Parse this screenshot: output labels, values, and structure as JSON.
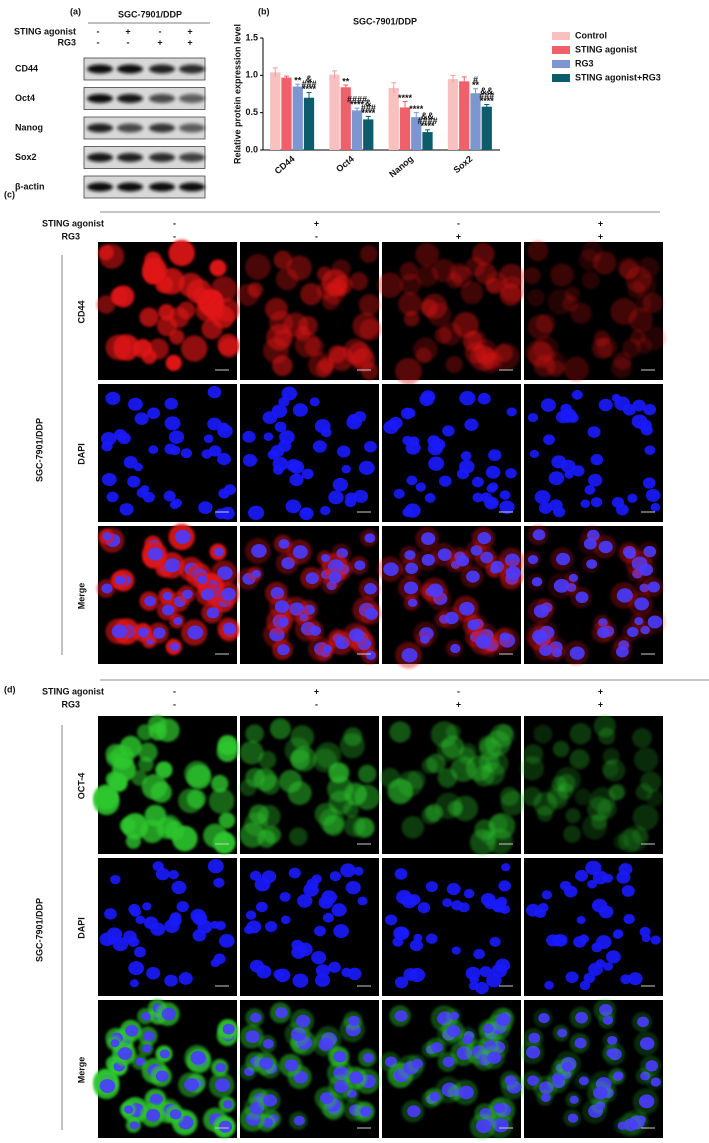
{
  "panel_a": {
    "label": "(a)",
    "title": "SGC-7901/DDP",
    "conditions": [
      {
        "label": "STING agonist",
        "signs": [
          "-",
          "+",
          "-",
          "+"
        ]
      },
      {
        "label": "RG3",
        "signs": [
          "-",
          "-",
          "+",
          "+"
        ]
      }
    ],
    "proteins": [
      "CD44",
      "Oct4",
      "Nanog",
      "Sox2",
      "β-actin"
    ]
  },
  "chart_data": {
    "type": "bar",
    "label": "(b)",
    "title": "SGC-7901/DDP",
    "y_label": "Relative protein expression level",
    "categories": [
      "CD44",
      "Oct4",
      "Nanog",
      "Sox2"
    ],
    "series": [
      {
        "name": "Control",
        "color": "#f9c0c0",
        "values": [
          1.04,
          1.01,
          0.83,
          0.95
        ],
        "errors": [
          0.06,
          0.05,
          0.07,
          0.05
        ],
        "sig": [
          [],
          [],
          [],
          []
        ]
      },
      {
        "name": "STING agonist",
        "color": "#f0606a",
        "values": [
          0.97,
          0.84,
          0.57,
          0.92
        ],
        "errors": [
          0.02,
          0.03,
          0.08,
          0.06
        ],
        "sig": [
          [],
          [
            "**"
          ],
          [
            "****"
          ],
          []
        ]
      },
      {
        "name": "RG3",
        "color": "#7b96d0",
        "values": [
          0.85,
          0.53,
          0.44,
          0.76
        ],
        "errors": [
          0.03,
          0.03,
          0.06,
          0.06
        ],
        "sig": [
          [
            "**"
          ],
          [
            "####",
            "****"
          ],
          [
            "****"
          ],
          [
            "#",
            "**"
          ]
        ]
      },
      {
        "name": "STING agonist+RG3",
        "color": "#0d5c6b",
        "values": [
          0.7,
          0.41,
          0.24,
          0.58
        ],
        "errors": [
          0.07,
          0.04,
          0.03,
          0.03
        ],
        "sig": [
          [
            "&",
            "###",
            "****"
          ],
          [
            "&",
            "###",
            "****"
          ],
          [
            "&&",
            "####",
            "****"
          ],
          [
            "&&",
            "###",
            "****"
          ]
        ]
      }
    ],
    "ylim": [
      0,
      1.5
    ],
    "yticks": [
      {
        "value": 0,
        "label": "0.0"
      },
      {
        "value": 0.5,
        "label": "0.5"
      },
      {
        "value": 1,
        "label": "1.0"
      },
      {
        "value": 1.5,
        "label": "1.5"
      }
    ],
    "legend": "right"
  },
  "panel_c": {
    "label": "(c)",
    "conditions": [
      {
        "label": "STING agonist",
        "signs": [
          "-",
          "+",
          "-",
          "+"
        ]
      },
      {
        "label": "RG3",
        "signs": [
          "-",
          "-",
          "+",
          "+"
        ]
      }
    ],
    "side_label": "SGC-7901/DDP",
    "rows": [
      "CD44",
      "DAPI",
      "Merge"
    ]
  },
  "panel_d": {
    "label": "(d)",
    "conditions": [
      {
        "label": "STING  agonist",
        "signs": [
          "-",
          "+",
          "-",
          "+"
        ]
      },
      {
        "label": "RG3",
        "signs": [
          "-",
          "-",
          "+",
          "+"
        ]
      }
    ],
    "side_label": "SGC-7901/DDP",
    "rows": [
      "OCT-4",
      "DAPI",
      "Merge"
    ]
  }
}
